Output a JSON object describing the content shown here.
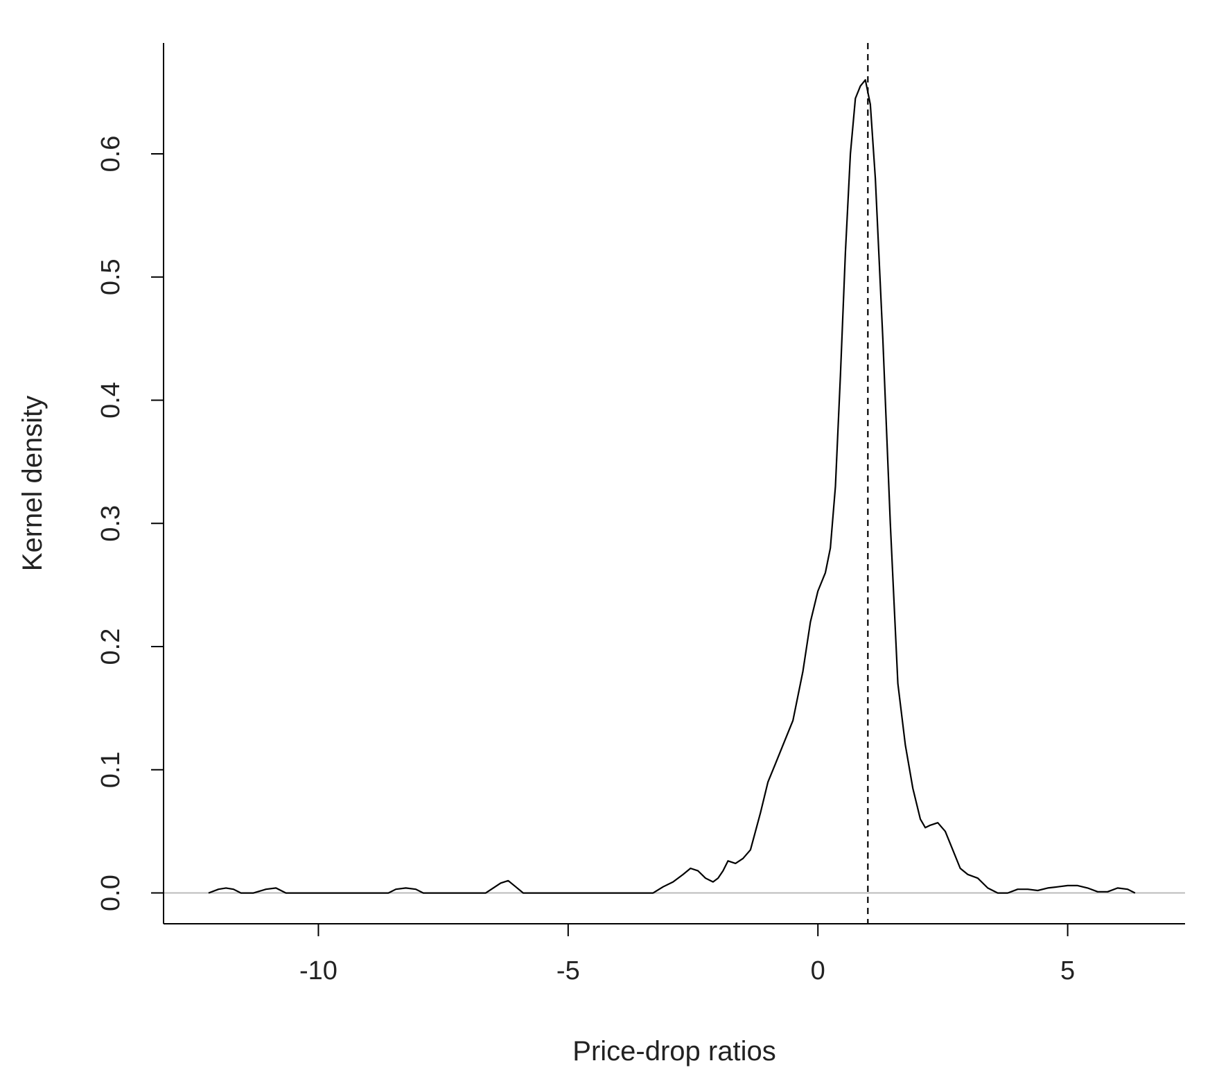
{
  "chart_data": {
    "type": "line",
    "title": "",
    "xlabel": "Price-drop ratios",
    "ylabel": "Kernel density",
    "xlim": [
      -13.1,
      7.35
    ],
    "ylim": [
      -0.025,
      0.69
    ],
    "x_ticks": [
      -10,
      -5,
      0,
      5
    ],
    "x_tick_labels": [
      "-10",
      "-5",
      "0",
      "5"
    ],
    "y_ticks": [
      0.0,
      0.1,
      0.2,
      0.3,
      0.4,
      0.5,
      0.6
    ],
    "y_tick_labels": [
      "0.0",
      "0.1",
      "0.2",
      "0.3",
      "0.4",
      "0.5",
      "0.6"
    ],
    "reference_lines": [
      {
        "orientation": "horizontal",
        "value": 0,
        "style": "solid",
        "color": "#bbbbbb"
      },
      {
        "orientation": "vertical",
        "value": 1,
        "style": "dashed",
        "color": "#000000"
      }
    ],
    "grid": false,
    "legend": "none",
    "series": [
      {
        "color": "#000000",
        "x": [
          -12.2,
          -12.0,
          -11.85,
          -11.7,
          -11.55,
          -11.3,
          -11.05,
          -10.85,
          -10.65,
          -10.45,
          -10.2,
          -8.6,
          -8.45,
          -8.25,
          -8.05,
          -7.9,
          -6.65,
          -6.5,
          -6.35,
          -6.2,
          -6.05,
          -5.9,
          -5.75,
          -3.3,
          -3.1,
          -2.9,
          -2.7,
          -2.55,
          -2.4,
          -2.25,
          -2.1,
          -2.0,
          -1.9,
          -1.8,
          -1.65,
          -1.5,
          -1.35,
          -1.25,
          -1.15,
          -1.0,
          -0.85,
          -0.7,
          -0.5,
          -0.3,
          -0.15,
          0.0,
          0.15,
          0.25,
          0.35,
          0.45,
          0.55,
          0.65,
          0.75,
          0.85,
          0.95,
          1.05,
          1.15,
          1.3,
          1.45,
          1.6,
          1.75,
          1.9,
          2.05,
          2.15,
          2.25,
          2.4,
          2.55,
          2.7,
          2.85,
          3.0,
          3.2,
          3.4,
          3.6,
          3.8,
          4.0,
          4.2,
          4.4,
          4.6,
          4.8,
          5.0,
          5.2,
          5.4,
          5.6,
          5.8,
          6.0,
          6.2,
          6.35
        ],
        "y": [
          0.0,
          0.003,
          0.004,
          0.003,
          0.0,
          0.0,
          0.003,
          0.004,
          0.0,
          0.0,
          0.0,
          0.0,
          0.003,
          0.004,
          0.003,
          0.0,
          0.0,
          0.004,
          0.008,
          0.01,
          0.005,
          0.0,
          0.0,
          0.0,
          0.005,
          0.009,
          0.015,
          0.02,
          0.018,
          0.012,
          0.009,
          0.012,
          0.018,
          0.026,
          0.024,
          0.028,
          0.035,
          0.05,
          0.065,
          0.09,
          0.105,
          0.12,
          0.14,
          0.18,
          0.22,
          0.245,
          0.26,
          0.28,
          0.33,
          0.42,
          0.52,
          0.6,
          0.645,
          0.655,
          0.66,
          0.64,
          0.58,
          0.45,
          0.3,
          0.17,
          0.12,
          0.085,
          0.06,
          0.053,
          0.055,
          0.057,
          0.05,
          0.035,
          0.02,
          0.015,
          0.012,
          0.004,
          0.0,
          0.0,
          0.003,
          0.003,
          0.002,
          0.004,
          0.005,
          0.006,
          0.006,
          0.004,
          0.001,
          0.001,
          0.004,
          0.003,
          0.0
        ]
      }
    ]
  }
}
